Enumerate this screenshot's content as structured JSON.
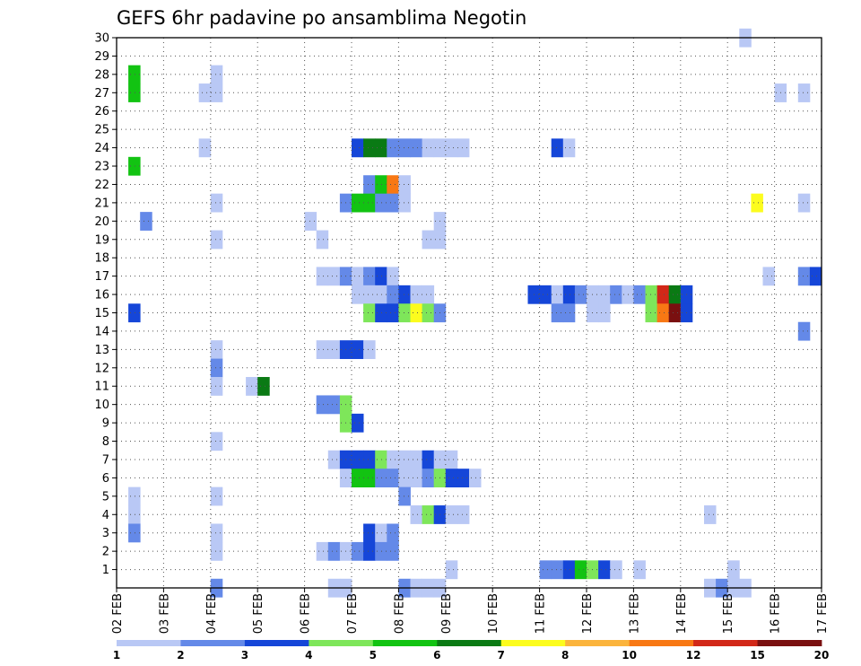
{
  "chart_data": {
    "type": "heatmap",
    "title": "GEFS 6hr padavine po ansamblima Negotin",
    "xlabel": "",
    "ylabel": "",
    "x_ticks": [
      "02 FEB",
      "03 FEB",
      "04 FEB",
      "05 FEB",
      "06 FEB",
      "07 FEB",
      "08 FEB",
      "09 FEB",
      "10 FEB",
      "11 FEB",
      "12 FEB",
      "13 FEB",
      "14 FEB",
      "15 FEB",
      "16 FEB",
      "17 FEB"
    ],
    "y_ticks": [
      1,
      2,
      3,
      4,
      5,
      6,
      7,
      8,
      9,
      10,
      11,
      12,
      13,
      14,
      15,
      16,
      17,
      18,
      19,
      20,
      21,
      22,
      23,
      24,
      25,
      26,
      27,
      28,
      29,
      30
    ],
    "ylim": [
      0,
      30
    ],
    "xlim": [
      0,
      15
    ],
    "grid": true,
    "colorbar": {
      "labels": [
        "1",
        "2",
        "3",
        "4",
        "5",
        "6",
        "7",
        "8",
        "10",
        "12",
        "15",
        "20"
      ],
      "colors": [
        "#b9c8f5",
        "#6489e8",
        "#1546d8",
        "#7ee65a",
        "#12c312",
        "#0a7a14",
        "#fcfc1e",
        "#fbb43c",
        "#f87814",
        "#d22818",
        "#7a1010"
      ]
    },
    "cells": [
      [
        0.25,
        27,
        5
      ],
      [
        0.25,
        28,
        5
      ],
      [
        0.25,
        23,
        5
      ],
      [
        0.5,
        20,
        2
      ],
      [
        0.25,
        15,
        3
      ],
      [
        0.25,
        5,
        1
      ],
      [
        0.25,
        4,
        1
      ],
      [
        0.25,
        3,
        2
      ],
      [
        2.0,
        28,
        1
      ],
      [
        1.75,
        27,
        1
      ],
      [
        2.0,
        27,
        1
      ],
      [
        1.75,
        24,
        1
      ],
      [
        2.0,
        21,
        1
      ],
      [
        2.0,
        19,
        1
      ],
      [
        2.0,
        13,
        1
      ],
      [
        2.0,
        12,
        2
      ],
      [
        2.0,
        11,
        1
      ],
      [
        2.0,
        8,
        1
      ],
      [
        2.0,
        5,
        1
      ],
      [
        2.0,
        3,
        1
      ],
      [
        2.0,
        2,
        1
      ],
      [
        2.0,
        0,
        2
      ],
      [
        2.75,
        11,
        1
      ],
      [
        3.0,
        11,
        6
      ],
      [
        4.0,
        20,
        1
      ],
      [
        4.25,
        19,
        1
      ],
      [
        4.25,
        17,
        1
      ],
      [
        4.5,
        17,
        1
      ],
      [
        4.75,
        17,
        2
      ],
      [
        4.25,
        13,
        1
      ],
      [
        4.5,
        13,
        1
      ],
      [
        4.75,
        13,
        3
      ],
      [
        5.0,
        13,
        3
      ],
      [
        5.25,
        13,
        1
      ],
      [
        4.25,
        10,
        2
      ],
      [
        4.5,
        10,
        2
      ],
      [
        4.75,
        10,
        4
      ],
      [
        4.75,
        9,
        4
      ],
      [
        5.0,
        9,
        3
      ],
      [
        4.25,
        2,
        1
      ],
      [
        4.5,
        2,
        2
      ],
      [
        4.75,
        2,
        1
      ],
      [
        5.0,
        2,
        2
      ],
      [
        4.5,
        7,
        1
      ],
      [
        4.75,
        7,
        3
      ],
      [
        5.0,
        7,
        3
      ],
      [
        4.75,
        6,
        1
      ],
      [
        4.5,
        0,
        1
      ],
      [
        4.75,
        0,
        1
      ],
      [
        5.0,
        24,
        3
      ],
      [
        5.25,
        24,
        6
      ],
      [
        5.5,
        24,
        6
      ],
      [
        5.75,
        24,
        2
      ],
      [
        6.0,
        24,
        2
      ],
      [
        6.25,
        24,
        2
      ],
      [
        6.5,
        24,
        1
      ],
      [
        6.75,
        24,
        1
      ],
      [
        7.0,
        24,
        1
      ],
      [
        7.25,
        24,
        1
      ],
      [
        5.25,
        22,
        2
      ],
      [
        5.5,
        22,
        5
      ],
      [
        5.75,
        22,
        9
      ],
      [
        6.0,
        22,
        1
      ],
      [
        4.75,
        21,
        2
      ],
      [
        5.0,
        21,
        5
      ],
      [
        5.25,
        21,
        5
      ],
      [
        5.5,
        21,
        2
      ],
      [
        5.75,
        21,
        2
      ],
      [
        6.0,
        21,
        1
      ],
      [
        5.0,
        17,
        1
      ],
      [
        5.25,
        17,
        2
      ],
      [
        5.5,
        17,
        3
      ],
      [
        5.75,
        17,
        1
      ],
      [
        5.0,
        16,
        1
      ],
      [
        5.25,
        16,
        1
      ],
      [
        5.5,
        16,
        1
      ],
      [
        5.75,
        16,
        2
      ],
      [
        6.0,
        16,
        3
      ],
      [
        6.25,
        16,
        1
      ],
      [
        6.5,
        16,
        1
      ],
      [
        5.25,
        15,
        4
      ],
      [
        5.5,
        15,
        3
      ],
      [
        5.75,
        15,
        3
      ],
      [
        6.0,
        15,
        4
      ],
      [
        6.25,
        15,
        7
      ],
      [
        6.5,
        15,
        4
      ],
      [
        6.75,
        15,
        2
      ],
      [
        5.25,
        7,
        3
      ],
      [
        5.5,
        7,
        4
      ],
      [
        5.75,
        7,
        1
      ],
      [
        6.0,
        7,
        1
      ],
      [
        6.25,
        7,
        1
      ],
      [
        6.5,
        7,
        3
      ],
      [
        6.75,
        7,
        1
      ],
      [
        7.0,
        7,
        1
      ],
      [
        5.0,
        6,
        5
      ],
      [
        5.25,
        6,
        5
      ],
      [
        5.5,
        6,
        2
      ],
      [
        5.75,
        6,
        2
      ],
      [
        6.0,
        6,
        1
      ],
      [
        6.25,
        6,
        1
      ],
      [
        6.5,
        6,
        2
      ],
      [
        6.75,
        6,
        4
      ],
      [
        7.0,
        6,
        3
      ],
      [
        7.25,
        6,
        3
      ],
      [
        7.5,
        6,
        1
      ],
      [
        6.0,
        5,
        2
      ],
      [
        6.25,
        4,
        1
      ],
      [
        6.5,
        4,
        4
      ],
      [
        6.75,
        4,
        3
      ],
      [
        7.0,
        4,
        1
      ],
      [
        7.25,
        4,
        1
      ],
      [
        5.25,
        3,
        3
      ],
      [
        5.5,
        3,
        1
      ],
      [
        5.75,
        3,
        2
      ],
      [
        5.25,
        2,
        3
      ],
      [
        5.5,
        2,
        2
      ],
      [
        5.75,
        2,
        2
      ],
      [
        7.0,
        1,
        1
      ],
      [
        6.0,
        0,
        2
      ],
      [
        6.25,
        0,
        1
      ],
      [
        6.5,
        0,
        1
      ],
      [
        6.75,
        0,
        1
      ],
      [
        6.75,
        20,
        1
      ],
      [
        6.5,
        19,
        1
      ],
      [
        6.75,
        19,
        1
      ],
      [
        8.75,
        16,
        3
      ],
      [
        9.0,
        16,
        3
      ],
      [
        9.25,
        16,
        1
      ],
      [
        9.5,
        16,
        3
      ],
      [
        9.75,
        16,
        2
      ],
      [
        10.0,
        16,
        1
      ],
      [
        10.25,
        16,
        1
      ],
      [
        10.5,
        16,
        2
      ],
      [
        10.75,
        16,
        1
      ],
      [
        11.0,
        16,
        2
      ],
      [
        11.25,
        16,
        4
      ],
      [
        11.5,
        16,
        10
      ],
      [
        11.75,
        16,
        6
      ],
      [
        12.0,
        16,
        3
      ],
      [
        9.25,
        15,
        2
      ],
      [
        9.5,
        15,
        2
      ],
      [
        10.0,
        15,
        1
      ],
      [
        10.25,
        15,
        1
      ],
      [
        11.25,
        15,
        4
      ],
      [
        11.5,
        15,
        9
      ],
      [
        11.75,
        15,
        11
      ],
      [
        12.0,
        15,
        3
      ],
      [
        9.25,
        24,
        3
      ],
      [
        9.5,
        24,
        1
      ],
      [
        9.0,
        1,
        2
      ],
      [
        9.25,
        1,
        2
      ],
      [
        9.5,
        1,
        3
      ],
      [
        9.75,
        1,
        5
      ],
      [
        10.0,
        1,
        4
      ],
      [
        10.25,
        1,
        3
      ],
      [
        10.5,
        1,
        1
      ],
      [
        11.0,
        1,
        1
      ],
      [
        13.0,
        1,
        1
      ],
      [
        12.5,
        0,
        1
      ],
      [
        12.75,
        0,
        2
      ],
      [
        13.0,
        0,
        1
      ],
      [
        13.25,
        0,
        1
      ],
      [
        12.5,
        4,
        1
      ],
      [
        13.25,
        30,
        1
      ],
      [
        13.5,
        21,
        7
      ],
      [
        13.75,
        17,
        1
      ],
      [
        14.0,
        27,
        1
      ],
      [
        14.5,
        27,
        1
      ],
      [
        14.5,
        21,
        1
      ],
      [
        14.5,
        17,
        2
      ],
      [
        14.75,
        17,
        3
      ],
      [
        14.5,
        14,
        2
      ]
    ]
  }
}
